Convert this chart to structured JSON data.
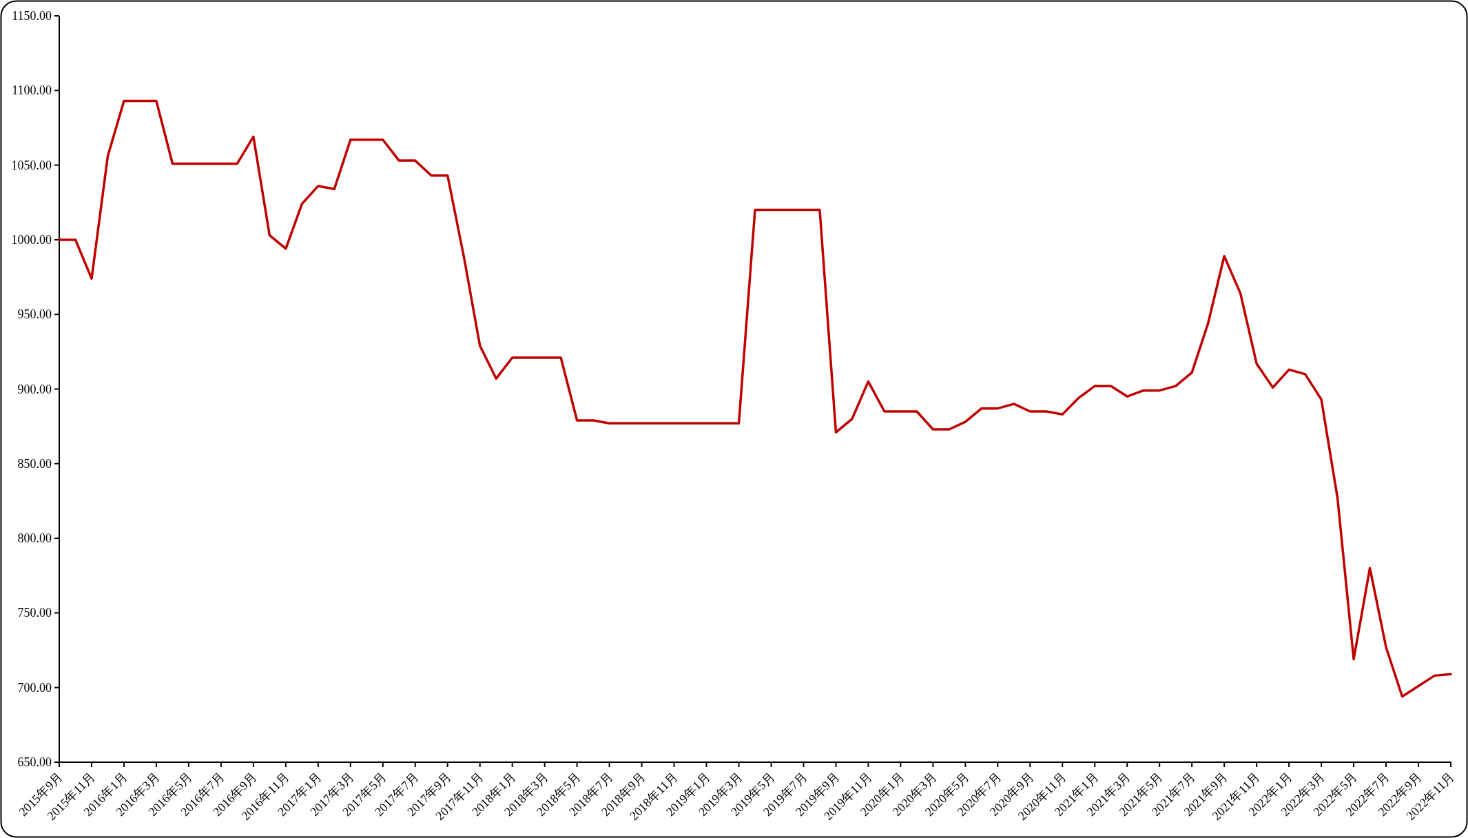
{
  "chart_data": {
    "type": "line",
    "categories": [
      "2015年9月",
      null,
      "2015年11月",
      null,
      "2016年1月",
      null,
      "2016年3月",
      null,
      "2016年5月",
      null,
      "2016年7月",
      null,
      "2016年9月",
      null,
      "2016年11月",
      null,
      "2017年1月",
      null,
      "2017年3月",
      null,
      "2017年5月",
      null,
      "2017年7月",
      null,
      "2017年9月",
      null,
      "2017年11月",
      null,
      "2018年1月",
      null,
      "2018年3月",
      null,
      "2018年5月",
      null,
      "2018年7月",
      null,
      "2018年9月",
      null,
      "2018年11月",
      null,
      "2019年1月",
      null,
      "2019年3月",
      null,
      "2019年5月",
      null,
      "2019年7月",
      null,
      "2019年9月",
      null,
      "2019年11月",
      null,
      "2020年1月",
      null,
      "2020年3月",
      null,
      "2020年5月",
      null,
      "2020年7月",
      null,
      "2020年9月",
      null,
      "2020年11月",
      null,
      "2021年1月",
      null,
      "2021年3月",
      null,
      "2021年5月",
      null,
      "2021年7月",
      null,
      "2021年9月",
      null,
      "2021年11月",
      null,
      "2022年1月",
      null,
      "2022年3月",
      null,
      "2022年5月",
      null,
      "2022年7月",
      null,
      "2022年9月",
      null,
      "2022年11月"
    ],
    "series": [
      {
        "color": "#c00000",
        "values": [
          1000,
          1000,
          974,
          1056,
          1093,
          1093,
          1093,
          1051,
          1051,
          1051,
          1051,
          1051,
          1069,
          1003,
          994,
          1024,
          1036,
          1034,
          1067,
          1067,
          1067,
          1053,
          1053,
          1043,
          1043,
          989,
          929,
          907,
          921,
          921,
          921,
          921,
          879,
          879,
          877,
          877,
          877,
          877,
          877,
          877,
          877,
          877,
          877,
          1020,
          1020,
          1020,
          1020,
          1020,
          871,
          880,
          905,
          885,
          885,
          885,
          873,
          873,
          878,
          887,
          887,
          890,
          885,
          885,
          883,
          894,
          902,
          902,
          895,
          899,
          899,
          902,
          911,
          944,
          989,
          964,
          917,
          901,
          913,
          910,
          893,
          827,
          719,
          780,
          727,
          694,
          701,
          708,
          709
        ]
      }
    ],
    "ylim": [
      650,
      1150
    ],
    "yticks": [
      {
        "value": 650,
        "label": "650.00"
      },
      {
        "value": 700,
        "label": "700.00"
      },
      {
        "value": 750,
        "label": "750.00"
      },
      {
        "value": 800,
        "label": "800.00"
      },
      {
        "value": 850,
        "label": "850.00"
      },
      {
        "value": 900,
        "label": "900.00"
      },
      {
        "value": 950,
        "label": "950.00"
      },
      {
        "value": 1000,
        "label": "1000.00"
      },
      {
        "value": 1050,
        "label": "1050.00"
      },
      {
        "value": 1100,
        "label": "1100.00"
      },
      {
        "value": 1150,
        "label": "1150.00"
      }
    ]
  }
}
